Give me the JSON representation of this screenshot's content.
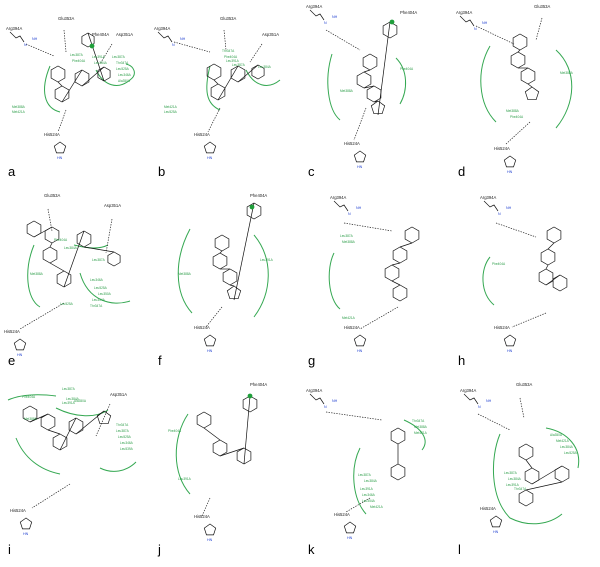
{
  "colors": {
    "hydrophobic": "#35a852",
    "hbond": "#222222",
    "nitrogen": "#1f3fd0",
    "oxygen": "#d01f1f",
    "aromatic_dot": "#1e9e3a"
  },
  "icons": [
    "ring-center-dot-icon"
  ],
  "panels": [
    {
      "letter": "a",
      "residues": [
        "Arg394A",
        "Glu353A",
        "Phe404A",
        "Asp351A",
        "His524A"
      ],
      "hydrophobic": [
        "Leu387A",
        "Phe404A",
        "Leu391A",
        "Leu384A",
        "Leu387A",
        "Thr347A",
        "Leu525A",
        "Leu346A",
        "Ala350A",
        "Met388A",
        "Met421A"
      ]
    },
    {
      "letter": "b",
      "residues": [
        "Arg394A",
        "Glu353A",
        "Asp351A",
        "His524A"
      ],
      "hydrophobic": [
        "Thr347A",
        "Phe404A",
        "Leu391A",
        "Leu387A",
        "Leu384A",
        "Met421A",
        "Leu525A"
      ]
    },
    {
      "letter": "c",
      "residues": [
        "Arg394A",
        "Phe404A",
        "His524A"
      ],
      "hydrophobic": [
        "Phe404A",
        "Met388A"
      ]
    },
    {
      "letter": "d",
      "residues": [
        "Arg394A",
        "Glu353A",
        "His524A"
      ],
      "hydrophobic": [
        "Met388A",
        "Met388A",
        "Phe404A"
      ]
    },
    {
      "letter": "e",
      "residues": [
        "Glu353A",
        "Asp351A",
        "His524A"
      ],
      "hydrophobic": [
        "Phe404A",
        "Leu384A",
        "Met388A",
        "Leu387A",
        "Leu346A",
        "Leu525A",
        "Leu350A",
        "Leu354A",
        "Thr347A",
        "Leu525A"
      ]
    },
    {
      "letter": "f",
      "residues": [
        "Phe404A",
        "His524A"
      ],
      "hydrophobic": [
        "Leu391A",
        "Met388A"
      ]
    },
    {
      "letter": "g",
      "residues": [
        "Arg394A",
        "His524A"
      ],
      "hydrophobic": [
        "Leu387A",
        "Met388A",
        "Met421A"
      ]
    },
    {
      "letter": "h",
      "residues": [
        "Arg394A",
        "His524A"
      ],
      "hydrophobic": [
        "Phe404A"
      ]
    },
    {
      "letter": "i",
      "residues": [
        "Asp351A",
        "His524A"
      ],
      "hydrophobic": [
        "Phe404A",
        "Leu387A",
        "Leu384A",
        "Ala350A",
        "Leu391A",
        "Met388A",
        "Thr347A",
        "Leu387A",
        "Leu525A",
        "Leu346A",
        "Leu539A"
      ]
    },
    {
      "letter": "j",
      "residues": [
        "Phe404A",
        "His524A"
      ],
      "hydrophobic": [
        "Phe404A",
        "Leu391A"
      ]
    },
    {
      "letter": "k",
      "residues": [
        "Arg394A",
        "His524A"
      ],
      "hydrophobic": [
        "Thr347A",
        "Met388A",
        "Met421A",
        "Leu387A",
        "Leu384A",
        "Leu391A",
        "Leu346A",
        "Leu354A",
        "Met421A"
      ]
    },
    {
      "letter": "l",
      "residues": [
        "Arg394A",
        "Glu353A",
        "His524A"
      ],
      "hydrophobic": [
        "Ala350A",
        "Met421A",
        "Leu384A",
        "Leu525A",
        "Leu387A",
        "Leu384A",
        "Leu391A",
        "Thr347A"
      ]
    }
  ]
}
